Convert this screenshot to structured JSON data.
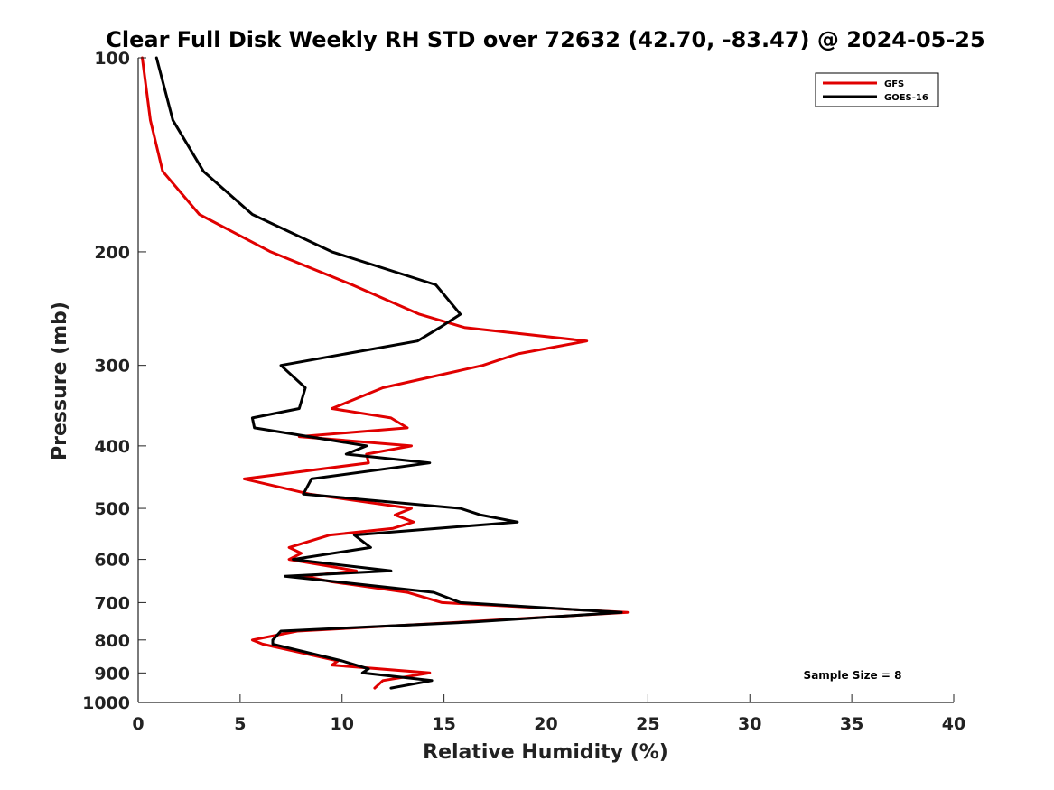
{
  "chart_data": {
    "type": "line",
    "title": "Clear Full Disk Weekly RH STD over 72632 (42.70, -83.47) @ 2024-05-25",
    "xlabel": "Relative Humidity (%)",
    "ylabel": "Pressure (mb)",
    "xlim": [
      0,
      40
    ],
    "ylim": [
      1000,
      100
    ],
    "y_scale": "log",
    "x_ticks": [
      0,
      5,
      10,
      15,
      20,
      25,
      30,
      35,
      40
    ],
    "x_tick_labels": [
      "0",
      "5",
      "10",
      "15",
      "20",
      "25",
      "30",
      "35",
      "40"
    ],
    "y_ticks": [
      100,
      200,
      300,
      400,
      500,
      600,
      700,
      800,
      900,
      1000
    ],
    "y_tick_labels": [
      "100",
      "200",
      "300",
      "400",
      "500",
      "600",
      "700",
      "800",
      "900",
      "1000"
    ],
    "grid": false,
    "legend_position": "top-right",
    "annotation": "Sample Size = 8",
    "series": [
      {
        "name": "GFS",
        "color": "#e00000",
        "points": [
          [
            0.2,
            100
          ],
          [
            0.6,
            125
          ],
          [
            1.2,
            150
          ],
          [
            3.0,
            175
          ],
          [
            6.5,
            200
          ],
          [
            10.5,
            225
          ],
          [
            13.8,
            250
          ],
          [
            16.0,
            262
          ],
          [
            22.0,
            275
          ],
          [
            18.6,
            288
          ],
          [
            16.9,
            300
          ],
          [
            12.0,
            325
          ],
          [
            9.5,
            350
          ],
          [
            12.4,
            362
          ],
          [
            13.2,
            375
          ],
          [
            7.9,
            387
          ],
          [
            13.4,
            400
          ],
          [
            11.2,
            412
          ],
          [
            11.3,
            425
          ],
          [
            5.2,
            450
          ],
          [
            8.4,
            475
          ],
          [
            13.4,
            500
          ],
          [
            12.6,
            512
          ],
          [
            13.5,
            525
          ],
          [
            12.5,
            537
          ],
          [
            9.4,
            550
          ],
          [
            7.4,
            575
          ],
          [
            8.0,
            587
          ],
          [
            7.4,
            600
          ],
          [
            10.7,
            625
          ],
          [
            8.1,
            637
          ],
          [
            9.5,
            650
          ],
          [
            13.2,
            675
          ],
          [
            14.9,
            700
          ],
          [
            24.0,
            725
          ],
          [
            16.0,
            750
          ],
          [
            7.8,
            775
          ],
          [
            5.6,
            800
          ],
          [
            6.1,
            812
          ],
          [
            9.8,
            862
          ],
          [
            9.5,
            875
          ],
          [
            14.3,
            900
          ],
          [
            12.0,
            925
          ],
          [
            11.6,
            950
          ]
        ]
      },
      {
        "name": "GOES-16",
        "color": "#000000",
        "points": [
          [
            0.9,
            100
          ],
          [
            1.7,
            125
          ],
          [
            3.2,
            150
          ],
          [
            5.6,
            175
          ],
          [
            9.5,
            200
          ],
          [
            14.6,
            225
          ],
          [
            15.8,
            250
          ],
          [
            14.8,
            262
          ],
          [
            13.7,
            275
          ],
          [
            7.0,
            300
          ],
          [
            8.2,
            325
          ],
          [
            7.9,
            350
          ],
          [
            5.6,
            362
          ],
          [
            5.7,
            375
          ],
          [
            11.2,
            400
          ],
          [
            10.2,
            412
          ],
          [
            14.3,
            425
          ],
          [
            8.5,
            450
          ],
          [
            8.1,
            475
          ],
          [
            15.8,
            500
          ],
          [
            16.8,
            512
          ],
          [
            18.6,
            525
          ],
          [
            10.6,
            550
          ],
          [
            11.4,
            575
          ],
          [
            7.6,
            600
          ],
          [
            12.4,
            625
          ],
          [
            7.2,
            637
          ],
          [
            14.5,
            675
          ],
          [
            15.8,
            700
          ],
          [
            23.7,
            725
          ],
          [
            16.5,
            750
          ],
          [
            7.0,
            775
          ],
          [
            6.6,
            800
          ],
          [
            6.6,
            812
          ],
          [
            10.0,
            862
          ],
          [
            11.3,
            887
          ],
          [
            11.0,
            900
          ],
          [
            14.4,
            925
          ],
          [
            12.4,
            950
          ]
        ]
      }
    ]
  }
}
